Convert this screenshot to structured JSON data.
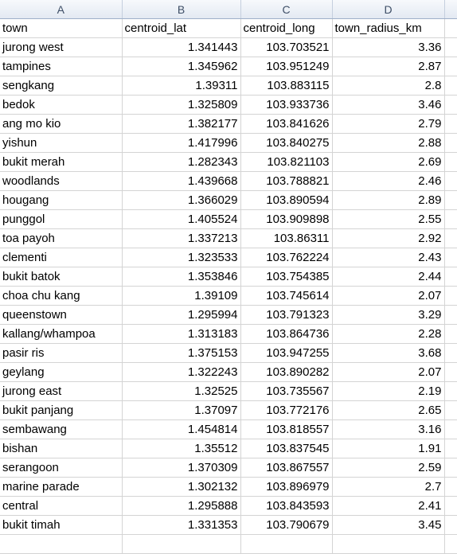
{
  "columns": [
    "A",
    "B",
    "C",
    "D"
  ],
  "header": [
    "town",
    "centroid_lat",
    "centroid_long",
    "town_radius_km"
  ],
  "rows": [
    [
      "jurong west",
      "1.341443",
      "103.703521",
      "3.36"
    ],
    [
      "tampines",
      "1.345962",
      "103.951249",
      "2.87"
    ],
    [
      "sengkang",
      "1.39311",
      "103.883115",
      "2.8"
    ],
    [
      "bedok",
      "1.325809",
      "103.933736",
      "3.46"
    ],
    [
      "ang mo kio",
      "1.382177",
      "103.841626",
      "2.79"
    ],
    [
      "yishun",
      "1.417996",
      "103.840275",
      "2.88"
    ],
    [
      "bukit merah",
      "1.282343",
      "103.821103",
      "2.69"
    ],
    [
      "woodlands",
      "1.439668",
      "103.788821",
      "2.46"
    ],
    [
      "hougang",
      "1.366029",
      "103.890594",
      "2.89"
    ],
    [
      "punggol",
      "1.405524",
      "103.909898",
      "2.55"
    ],
    [
      "toa payoh",
      "1.337213",
      "103.86311",
      "2.92"
    ],
    [
      "clementi",
      "1.323533",
      "103.762224",
      "2.43"
    ],
    [
      "bukit batok",
      "1.353846",
      "103.754385",
      "2.44"
    ],
    [
      "choa chu kang",
      "1.39109",
      "103.745614",
      "2.07"
    ],
    [
      "queenstown",
      "1.295994",
      "103.791323",
      "3.29"
    ],
    [
      "kallang/whampoa",
      "1.313183",
      "103.864736",
      "2.28"
    ],
    [
      "pasir ris",
      "1.375153",
      "103.947255",
      "3.68"
    ],
    [
      "geylang",
      "1.322243",
      "103.890282",
      "2.07"
    ],
    [
      "jurong east",
      "1.32525",
      "103.735567",
      "2.19"
    ],
    [
      "bukit panjang",
      "1.37097",
      "103.772176",
      "2.65"
    ],
    [
      "sembawang",
      "1.454814",
      "103.818557",
      "3.16"
    ],
    [
      "bishan",
      "1.35512",
      "103.837545",
      "1.91"
    ],
    [
      "serangoon",
      "1.370309",
      "103.867557",
      "2.59"
    ],
    [
      "marine parade",
      "1.302132",
      "103.896979",
      "2.7"
    ],
    [
      "central",
      "1.295888",
      "103.843593",
      "2.41"
    ],
    [
      "bukit timah",
      "1.331353",
      "103.790679",
      "3.45"
    ]
  ]
}
